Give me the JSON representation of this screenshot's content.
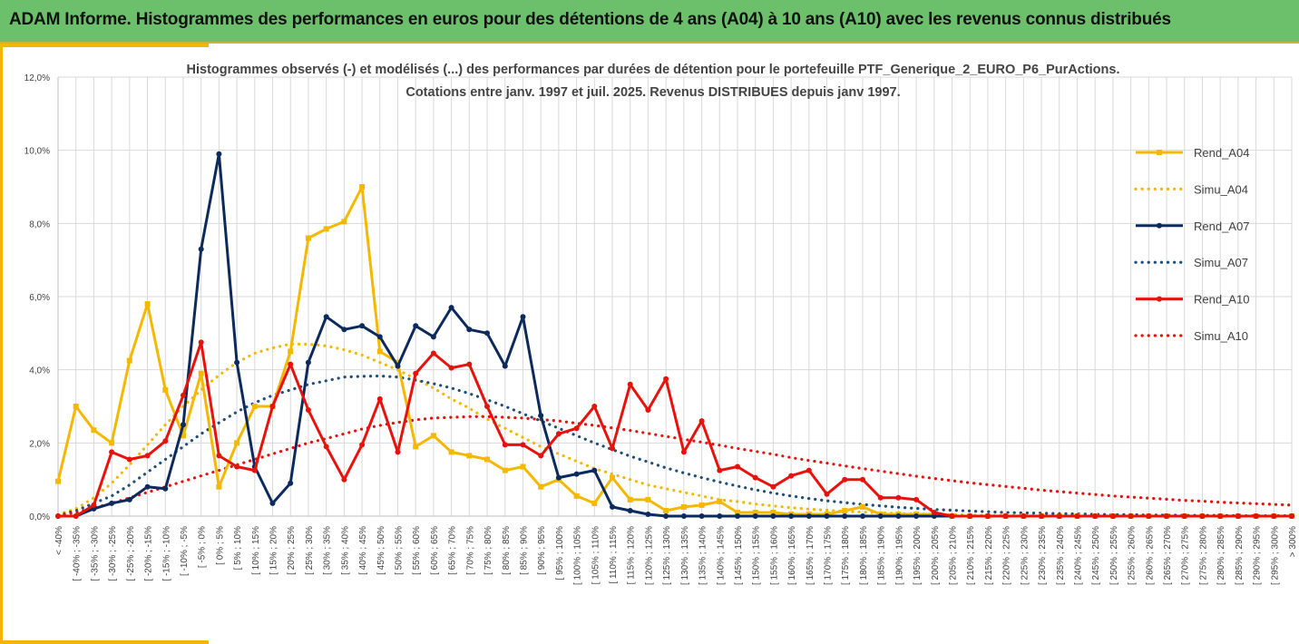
{
  "header": {
    "title": "ADAM Informe. Histogrammes des performances en euros pour des détentions de 4 ans (A04) à 10 ans (A10) avec les revenus connus distribués"
  },
  "chart_data": {
    "type": "line",
    "title": "Histogrammes observés (-) et modélisés (...) des performances par durées de détention pour le portefeuille PTF_Generique_2_EURO_P6_PurActions.",
    "subtitle": "Cotations entre janv. 1997 et juil. 2025. Revenus DISTRIBUES depuis janv 1997.",
    "ylim": [
      0,
      12
    ],
    "yticks": [
      "0,0%",
      "2,0%",
      "4,0%",
      "6,0%",
      "8,0%",
      "10,0%",
      "12,0%"
    ],
    "grid": true,
    "legend_position": "right",
    "categories": [
      "< -40%",
      "[ -40% ; -35%",
      "[ -35% ; -30%",
      "[ -30% ; -25%",
      "[ -25% ; -20%",
      "[ -20% ; -15%",
      "[ -15% ; -10%",
      "[ -10% ; -5%",
      "[ -5% ; 0%",
      "[ 0% ; 5%",
      "[ 5% ; 10%",
      "[ 10% ; 15%",
      "[ 15% ; 20%",
      "[ 20% ; 25%",
      "[ 25% ; 30%",
      "[ 30% ; 35%",
      "[ 35% ; 40%",
      "[ 40% ; 45%",
      "[ 45% ; 50%",
      "[ 50% ; 55%",
      "[ 55% ; 60%",
      "[ 60% ; 65%",
      "[ 65% ; 70%",
      "[ 70% ; 75%",
      "[ 75% ; 80%",
      "[ 80% ; 85%",
      "[ 85% ; 90%",
      "[ 90% ; 95%",
      "[ 95% ; 100%",
      "[ 100% ; 105%",
      "[ 105% ; 110%",
      "[ 110% ; 115%",
      "[ 115% ; 120%",
      "[ 120% ; 125%",
      "[ 125% ; 130%",
      "[ 130% ; 135%",
      "[ 135% ; 140%",
      "[ 140% ; 145%",
      "[ 145% ; 150%",
      "[ 150% ; 155%",
      "[ 155% ; 160%",
      "[ 160% ; 165%",
      "[ 165% ; 170%",
      "[ 170% ; 175%",
      "[ 175% ; 180%",
      "[ 180% ; 185%",
      "[ 185% ; 190%",
      "[ 190% ; 195%",
      "[ 195% ; 200%",
      "[ 200% ; 205%",
      "[ 205% ; 210%",
      "[ 210% ; 215%",
      "[ 215% ; 220%",
      "[ 220% ; 225%",
      "[ 225% ; 230%",
      "[ 230% ; 235%",
      "[ 235% ; 240%",
      "[ 240% ; 245%",
      "[ 245% ; 250%",
      "[ 250% ; 255%",
      "[ 255% ; 260%",
      "[ 260% ; 265%",
      "[ 265% ; 270%",
      "[ 270% ; 275%",
      "[ 275% ; 280%",
      "[ 280% ; 285%",
      "[ 285% ; 290%",
      "[ 290% ; 295%",
      "[ 295% ; 300%",
      "> 300%"
    ],
    "series": [
      {
        "name": "Rend_A04",
        "style": "solid",
        "color": "#f5b800",
        "values": [
          0.95,
          3.0,
          2.35,
          2.0,
          4.25,
          5.8,
          3.45,
          2.2,
          3.9,
          0.8,
          2.0,
          3.0,
          3.0,
          4.5,
          7.6,
          7.85,
          8.05,
          9.0,
          4.5,
          4.2,
          1.9,
          2.2,
          1.75,
          1.65,
          1.55,
          1.25,
          1.35,
          0.8,
          1.0,
          0.55,
          0.35,
          1.05,
          0.45,
          0.45,
          0.15,
          0.25,
          0.3,
          0.4,
          0.1,
          0.1,
          0.1,
          0.05,
          0.05,
          0.05,
          0.15,
          0.25,
          0.05,
          0.05,
          0.05,
          0.05,
          0,
          0,
          0,
          0,
          0,
          0,
          0,
          0,
          0,
          0,
          0,
          0,
          0,
          0,
          0,
          0,
          0,
          0,
          0,
          0
        ]
      },
      {
        "name": "Simu_A04",
        "style": "dotted",
        "color": "#f5b800",
        "values": [
          0.05,
          0.2,
          0.5,
          0.9,
          1.4,
          1.95,
          2.5,
          3.0,
          3.45,
          3.85,
          4.2,
          4.45,
          4.6,
          4.7,
          4.7,
          4.65,
          4.55,
          4.4,
          4.2,
          4.0,
          3.75,
          3.5,
          3.2,
          2.95,
          2.65,
          2.4,
          2.15,
          1.9,
          1.7,
          1.5,
          1.3,
          1.15,
          1.0,
          0.85,
          0.75,
          0.65,
          0.55,
          0.45,
          0.4,
          0.33,
          0.28,
          0.23,
          0.19,
          0.16,
          0.13,
          0.11,
          0.09,
          0.07,
          0.06,
          0.05,
          0.04,
          0.03,
          0.02,
          0.02,
          0.02,
          0.01,
          0.01,
          0.01,
          0,
          0,
          0,
          0,
          0,
          0,
          0,
          0,
          0,
          0,
          0,
          0
        ]
      },
      {
        "name": "Rend_A07",
        "style": "solid",
        "color": "#0d2a5c",
        "values": [
          0,
          0,
          0.2,
          0.35,
          0.45,
          0.8,
          0.75,
          2.5,
          7.3,
          9.9,
          4.2,
          1.35,
          0.35,
          0.9,
          4.2,
          5.45,
          5.1,
          5.2,
          4.9,
          4.1,
          5.2,
          4.9,
          5.7,
          5.1,
          5.0,
          4.1,
          5.45,
          2.75,
          1.05,
          1.15,
          1.25,
          0.25,
          0.15,
          0.05,
          0,
          0,
          0,
          0,
          0,
          0,
          0,
          0,
          0,
          0,
          0,
          0,
          0,
          0,
          0,
          0,
          0,
          0,
          0,
          0,
          0,
          0,
          0,
          0,
          0,
          0,
          0,
          0,
          0,
          0,
          0,
          0,
          0,
          0,
          0,
          0
        ]
      },
      {
        "name": "Simu_A07",
        "style": "dotted",
        "color": "#1f4e79",
        "values": [
          0.02,
          0.15,
          0.35,
          0.55,
          0.85,
          1.2,
          1.55,
          1.9,
          2.25,
          2.55,
          2.85,
          3.1,
          3.3,
          3.45,
          3.6,
          3.7,
          3.8,
          3.82,
          3.83,
          3.8,
          3.72,
          3.62,
          3.5,
          3.35,
          3.18,
          3.0,
          2.8,
          2.6,
          2.4,
          2.2,
          2.0,
          1.82,
          1.64,
          1.48,
          1.32,
          1.18,
          1.05,
          0.93,
          0.82,
          0.72,
          0.63,
          0.55,
          0.48,
          0.42,
          0.37,
          0.32,
          0.28,
          0.24,
          0.21,
          0.18,
          0.16,
          0.14,
          0.12,
          0.1,
          0.09,
          0.08,
          0.07,
          0.06,
          0.05,
          0.04,
          0.04,
          0.03,
          0.03,
          0.02,
          0.02,
          0.02,
          0.01,
          0.01,
          0.01,
          0.01
        ]
      },
      {
        "name": "Rend_A10",
        "style": "solid",
        "color": "#e8120c",
        "values": [
          0,
          0,
          0.3,
          1.75,
          1.55,
          1.65,
          2.05,
          3.3,
          4.75,
          1.65,
          1.35,
          1.25,
          3.0,
          4.15,
          2.9,
          1.9,
          1.0,
          1.95,
          3.2,
          1.75,
          3.9,
          4.45,
          4.05,
          4.15,
          3.0,
          1.95,
          1.95,
          1.65,
          2.25,
          2.4,
          3.0,
          1.85,
          3.6,
          2.9,
          3.75,
          1.75,
          2.6,
          1.25,
          1.35,
          1.05,
          0.8,
          1.1,
          1.25,
          0.6,
          1.0,
          1.0,
          0.5,
          0.5,
          0.45,
          0.1,
          0,
          0,
          0,
          0,
          0,
          0,
          0,
          0,
          0,
          0,
          0,
          0,
          0,
          0,
          0,
          0,
          0,
          0,
          0,
          0
        ]
      },
      {
        "name": "Simu_A10",
        "style": "dotted",
        "color": "#e8120c",
        "values": [
          0.02,
          0.1,
          0.22,
          0.35,
          0.5,
          0.65,
          0.8,
          0.95,
          1.1,
          1.25,
          1.4,
          1.55,
          1.7,
          1.85,
          2.0,
          2.12,
          2.25,
          2.38,
          2.48,
          2.56,
          2.63,
          2.68,
          2.7,
          2.72,
          2.72,
          2.7,
          2.68,
          2.64,
          2.6,
          2.54,
          2.48,
          2.41,
          2.34,
          2.26,
          2.18,
          2.1,
          2.02,
          1.94,
          1.85,
          1.77,
          1.69,
          1.6,
          1.52,
          1.45,
          1.37,
          1.3,
          1.23,
          1.16,
          1.09,
          1.03,
          0.97,
          0.91,
          0.86,
          0.81,
          0.76,
          0.71,
          0.67,
          0.63,
          0.59,
          0.55,
          0.52,
          0.49,
          0.46,
          0.43,
          0.41,
          0.38,
          0.36,
          0.34,
          0.32,
          0.3
        ]
      }
    ]
  }
}
